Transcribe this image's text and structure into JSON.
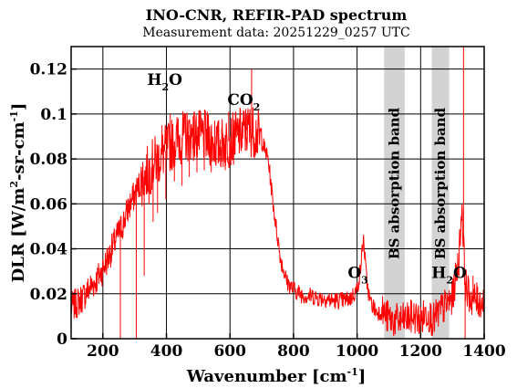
{
  "chart_data": {
    "type": "line",
    "title": "INO-CNR, REFIR-PAD spectrum",
    "subtitle": "Measurement data: 20251229_0257 UTC",
    "xlabel": {
      "main": "Wavenumber [cm",
      "sup": "-1",
      "end": "]"
    },
    "ylabel": {
      "a": "DLR [W/m",
      "sup1": "2",
      "b": "-sr-cm",
      "sup2": "-1",
      "c": "]"
    },
    "xlim": [
      100,
      1400
    ],
    "ylim": [
      0,
      0.13
    ],
    "xticks": [
      200,
      400,
      600,
      800,
      1000,
      1200,
      1400
    ],
    "xtick_labels": [
      "200",
      "400",
      "600",
      "800",
      "1000",
      "1200",
      "1400"
    ],
    "yticks": [
      0,
      0.02,
      0.04,
      0.06,
      0.08,
      0.1,
      0.12
    ],
    "ytick_labels": [
      "0",
      "0.02",
      "0.04",
      "0.06",
      "0.08",
      "0.1",
      "0.12"
    ],
    "grid": true,
    "line_color": "#ff0000",
    "band_color": "#d3d3d3",
    "bands": [
      {
        "label": "BS absorption band",
        "x_range": [
          1085,
          1150
        ]
      },
      {
        "label": "BS absorption band",
        "x_range": [
          1235,
          1290
        ]
      }
    ],
    "annotations": [
      {
        "main": "H",
        "sub": "2",
        "end": "O",
        "x": 450,
        "y": 0.113
      },
      {
        "main": "CO",
        "sub": "2",
        "end": "",
        "x": 695,
        "y": 0.104
      },
      {
        "main": "O",
        "sub": "3",
        "end": "",
        "x": 1035,
        "y": 0.027
      },
      {
        "main": "H",
        "sub": "2",
        "end": "O",
        "x": 1345,
        "y": 0.027
      }
    ],
    "series": [
      {
        "x": [
          100,
          120,
          140,
          160,
          180,
          200,
          220,
          240,
          260,
          280,
          300,
          320,
          340,
          360,
          380,
          400,
          420,
          440,
          460,
          480,
          500,
          520,
          540,
          560,
          580,
          600,
          620,
          640,
          660,
          680,
          700,
          720,
          740,
          760,
          780,
          800,
          820,
          840,
          860,
          880,
          900,
          920,
          940,
          960,
          980,
          1000,
          1010,
          1020,
          1030,
          1040,
          1060,
          1080,
          1100,
          1120,
          1140,
          1160,
          1180,
          1200,
          1220,
          1240,
          1260,
          1280,
          1300,
          1320,
          1330,
          1340,
          1350,
          1360,
          1380,
          1400
        ],
        "y": [
          0.014,
          0.016,
          0.019,
          0.023,
          0.026,
          0.031,
          0.037,
          0.044,
          0.05,
          0.058,
          0.064,
          0.07,
          0.074,
          0.078,
          0.081,
          0.084,
          0.087,
          0.089,
          0.09,
          0.091,
          0.09,
          0.09,
          0.088,
          0.086,
          0.087,
          0.088,
          0.09,
          0.092,
          0.093,
          0.092,
          0.088,
          0.08,
          0.055,
          0.035,
          0.025,
          0.022,
          0.02,
          0.019,
          0.019,
          0.018,
          0.018,
          0.017,
          0.017,
          0.017,
          0.018,
          0.022,
          0.03,
          0.045,
          0.026,
          0.017,
          0.012,
          0.012,
          0.009,
          0.008,
          0.008,
          0.009,
          0.01,
          0.008,
          0.012,
          0.008,
          0.012,
          0.015,
          0.018,
          0.035,
          0.06,
          0.025,
          0.02,
          0.018,
          0.017,
          0.016
        ]
      }
    ],
    "absorption_spikes": [
      [
        255,
        0.0
      ],
      [
        305,
        0.0
      ],
      [
        330,
        0.028
      ],
      [
        345,
        0.06
      ],
      [
        358,
        0.052
      ],
      [
        372,
        0.056
      ],
      [
        386,
        0.095
      ],
      [
        398,
        0.062
      ],
      [
        412,
        0.1
      ],
      [
        425,
        0.07
      ],
      [
        437,
        0.098
      ],
      [
        449,
        0.068
      ],
      [
        460,
        0.1
      ],
      [
        472,
        0.072
      ],
      [
        484,
        0.099
      ],
      [
        496,
        0.074
      ],
      [
        508,
        0.1
      ],
      [
        519,
        0.075
      ],
      [
        530,
        0.1
      ],
      [
        541,
        0.074
      ],
      [
        552,
        0.097
      ],
      [
        563,
        0.078
      ],
      [
        574,
        0.094
      ],
      [
        585,
        0.075
      ],
      [
        596,
        0.101
      ],
      [
        610,
        0.082
      ],
      [
        624,
        0.096
      ],
      [
        638,
        0.085
      ],
      [
        652,
        0.1
      ],
      [
        668,
        0.12
      ],
      [
        683,
        0.09
      ],
      [
        1335,
        0.13
      ],
      [
        1340,
        0.0
      ],
      [
        1365,
        0.028
      ]
    ]
  }
}
